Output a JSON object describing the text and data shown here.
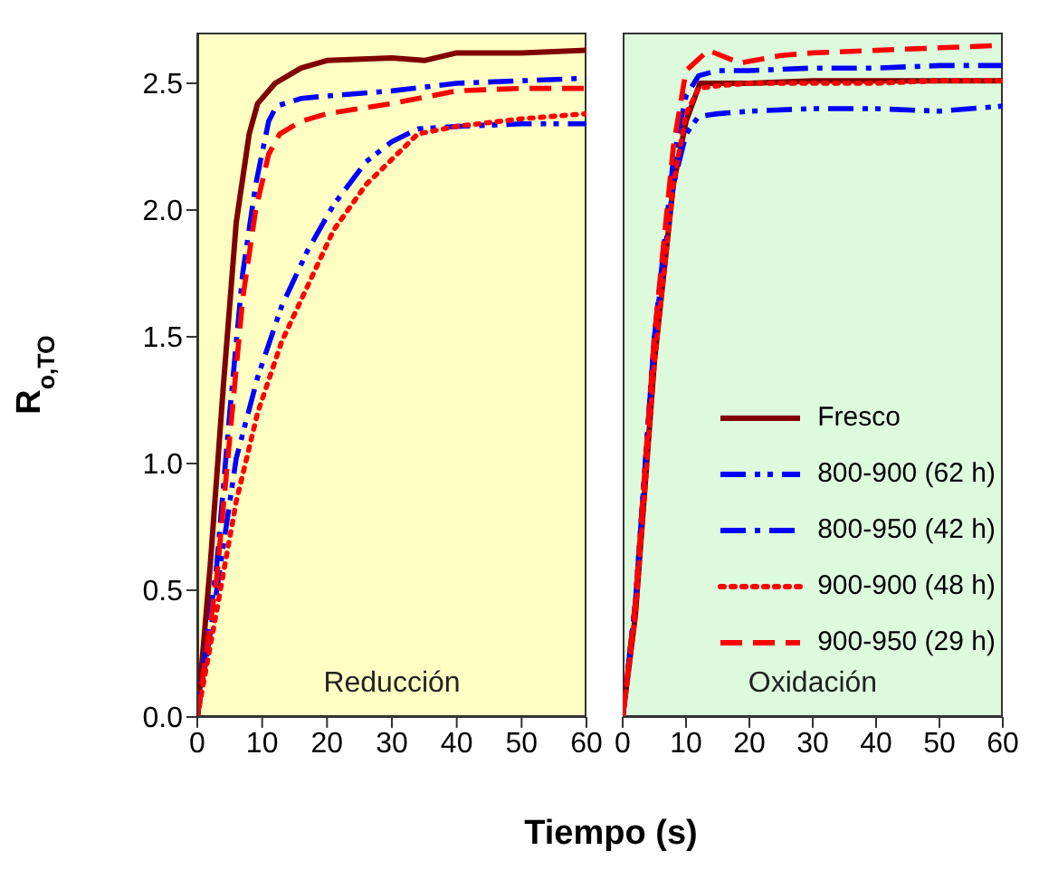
{
  "chart_data": [
    {
      "type": "line",
      "title": "Reducción",
      "xlabel": "Tiempo (s)",
      "ylabel": "R$_{o,TO}$",
      "xlim": [
        0,
        60
      ],
      "xticks": [
        0,
        10,
        20,
        30,
        40,
        50,
        60
      ],
      "ylim": [
        0,
        2.7
      ],
      "yticks": [
        {
          "value": 0,
          "label": "0.0"
        },
        {
          "value": 0.5,
          "label": "0.5"
        },
        {
          "value": 1,
          "label": "1.0"
        },
        {
          "value": 1.5,
          "label": "1.5"
        },
        {
          "value": 2,
          "label": "2.0"
        },
        {
          "value": 2.5,
          "label": "2.5"
        }
      ],
      "series": [
        {
          "color": "#800000",
          "line_style": "solid",
          "x": [
            0,
            2,
            4,
            6,
            8,
            9.3,
            12,
            16,
            20,
            30,
            35,
            40,
            50,
            60
          ],
          "values": [
            0,
            0.6,
            1.3,
            1.95,
            2.3,
            2.42,
            2.5,
            2.56,
            2.59,
            2.6,
            2.59,
            2.62,
            2.62,
            2.63
          ]
        },
        {
          "color": "#0000ff",
          "line_style": "dashdotdot",
          "x": [
            0,
            3,
            6,
            9.3,
            13,
            17,
            21,
            26,
            30,
            34,
            40,
            50,
            60
          ],
          "values": [
            0,
            0.5,
            1.02,
            1.34,
            1.62,
            1.84,
            2.02,
            2.19,
            2.27,
            2.32,
            2.33,
            2.34,
            2.34
          ]
        },
        {
          "color": "#0000ff",
          "line_style": "dashdot",
          "x": [
            0,
            3,
            5,
            7,
            9,
            11,
            12.2,
            16,
            20,
            30,
            40,
            50,
            60
          ],
          "values": [
            0,
            0.6,
            1.2,
            1.75,
            2.1,
            2.35,
            2.41,
            2.44,
            2.45,
            2.47,
            2.5,
            2.51,
            2.52
          ]
        },
        {
          "color": "#ff0000",
          "line_style": "dotted",
          "x": [
            0,
            3,
            6,
            9.3,
            13,
            17,
            21,
            26,
            30,
            34,
            40,
            50,
            60
          ],
          "values": [
            0,
            0.42,
            0.85,
            1.2,
            1.48,
            1.7,
            1.92,
            2.1,
            2.2,
            2.3,
            2.33,
            2.36,
            2.38
          ]
        },
        {
          "color": "#ff0000",
          "line_style": "dashed",
          "x": [
            0,
            3,
            5,
            7,
            9,
            11,
            12.7,
            16,
            20,
            30,
            40,
            50,
            60
          ],
          "values": [
            0,
            0.55,
            1.1,
            1.65,
            2.0,
            2.22,
            2.3,
            2.35,
            2.38,
            2.42,
            2.47,
            2.48,
            2.48
          ]
        }
      ]
    },
    {
      "type": "line",
      "title": "Oxidación",
      "xlim": [
        0,
        60
      ],
      "xticks": [
        0,
        10,
        20,
        30,
        40,
        50,
        60
      ],
      "ylim": [
        0,
        2.7
      ],
      "tick_labels": "x",
      "legend": "bottom right",
      "series": [
        {
          "name": "Fresco",
          "color": "#800000",
          "line_style": "solid",
          "x": [
            0,
            2,
            5,
            8,
            10,
            12.2,
            15,
            20,
            30,
            40,
            50,
            60
          ],
          "values": [
            0,
            0.4,
            1.4,
            2.1,
            2.35,
            2.5,
            2.5,
            2.5,
            2.51,
            2.51,
            2.51,
            2.51
          ]
        },
        {
          "name": "800-900 (62 h)",
          "color": "#0000ff",
          "line_style": "dashdotdot",
          "x": [
            0,
            2,
            5,
            8,
            10,
            12,
            15,
            20,
            30,
            40,
            50,
            60
          ],
          "values": [
            0,
            0.45,
            1.5,
            2.1,
            2.3,
            2.37,
            2.38,
            2.39,
            2.4,
            2.4,
            2.39,
            2.41
          ]
        },
        {
          "name": "800-950 (42 h)",
          "color": "#0000ff",
          "line_style": "dashdot",
          "x": [
            0,
            2,
            5,
            8,
            10,
            12,
            15,
            20,
            30,
            40,
            50,
            60
          ],
          "values": [
            0,
            0.45,
            1.5,
            2.2,
            2.45,
            2.53,
            2.55,
            2.55,
            2.56,
            2.56,
            2.57,
            2.57
          ]
        },
        {
          "name": "900-900 (48 h)",
          "color": "#ff0000",
          "line_style": "dotted",
          "x": [
            0,
            2,
            5,
            8,
            10,
            12,
            15,
            20,
            30,
            40,
            50,
            60
          ],
          "values": [
            0,
            0.4,
            1.4,
            2.1,
            2.38,
            2.48,
            2.49,
            2.5,
            2.5,
            2.5,
            2.51,
            2.51
          ]
        },
        {
          "name": "900-950 (29 h)",
          "color": "#ff0000",
          "line_style": "dashed",
          "x": [
            0,
            2,
            5,
            8,
            10,
            13.5,
            18.5,
            25,
            30,
            40,
            50,
            60
          ],
          "values": [
            0,
            0.45,
            1.5,
            2.25,
            2.55,
            2.63,
            2.58,
            2.61,
            2.62,
            2.63,
            2.64,
            2.65
          ]
        }
      ]
    }
  ]
}
